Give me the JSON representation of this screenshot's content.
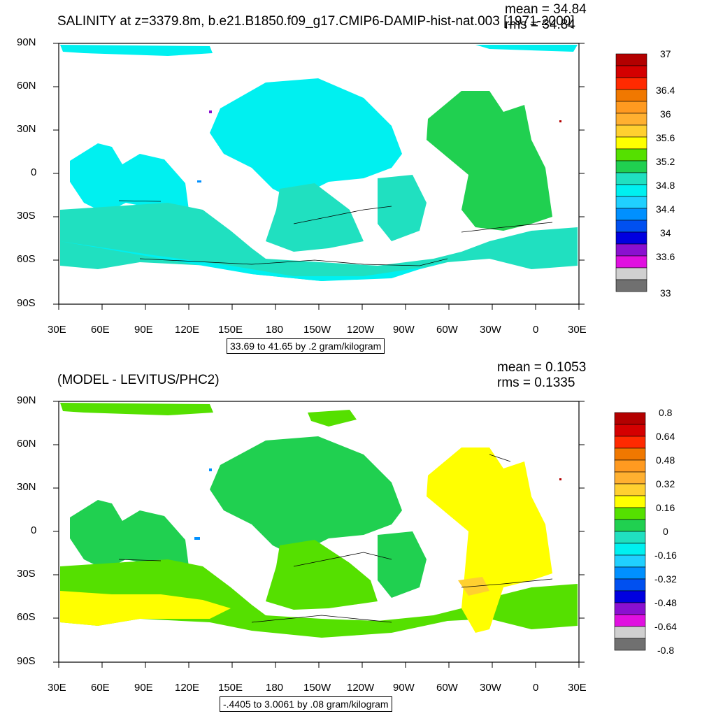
{
  "panels": [
    {
      "title": "SALINITY at z=3379.8m, b.e21.B1850.f09_g17.CMIP6-DAMIP-hist-nat.003 [1971-2000]",
      "mean": "mean = 34.84",
      "rms": "rms = 34.84",
      "range": "33.69 to 41.65 by .2 gram/kilogram",
      "colorbar_labels": [
        "37",
        "36.4",
        "36",
        "35.6",
        "35.2",
        "34.8",
        "34.4",
        "34",
        "33.6",
        "33"
      ],
      "colorbar_colors": [
        "#b30000",
        "#d40000",
        "#ff2a00",
        "#f07800",
        "#ff9a20",
        "#ffd030",
        "#ffff00",
        "#55e000",
        "#20d050",
        "#20e0c0",
        "#00f0f0",
        "#20d0ff",
        "#0090ff",
        "#0050f0",
        "#0000e0",
        "#8a10d0",
        "#e010e0",
        "#d0d0d0",
        "#707070"
      ],
      "fill_primary": "#00f0f0",
      "fill_secondary": "#20e0c0",
      "fill_atlantic": "#20d050"
    },
    {
      "title": "(MODEL - LEVITUS/PHC2)",
      "mean": "mean = 0.1053",
      "rms": "rms = 0.1335",
      "range": "-.4405 to 3.0061 by .08 gram/kilogram",
      "colorbar_labels": [
        "0.8",
        "0.64",
        "0.48",
        "0.32",
        "0.16",
        "0",
        "-0.16",
        "-0.32",
        "-0.48",
        "-0.64",
        "-0.8"
      ],
      "colorbar_colors": [
        "#b30000",
        "#d40000",
        "#ff2a00",
        "#f07800",
        "#ff9a20",
        "#ffd030",
        "#ffff00",
        "#55e000",
        "#20d050",
        "#20e0c0",
        "#00f0f0",
        "#20d0ff",
        "#0090ff",
        "#0050f0",
        "#0000e0",
        "#8a10d0",
        "#e010e0",
        "#d0d0d0",
        "#707070"
      ],
      "fill_primary": "#20d050",
      "fill_secondary": "#55e000",
      "fill_atlantic": "#ffff00"
    }
  ],
  "lat_labels": [
    "90N",
    "60N",
    "30N",
    "0",
    "30S",
    "60S",
    "90S"
  ],
  "lon_labels": [
    "30E",
    "60E",
    "90E",
    "120E",
    "150E",
    "180",
    "150W",
    "120W",
    "90W",
    "60W",
    "30W",
    "0",
    "30E"
  ]
}
